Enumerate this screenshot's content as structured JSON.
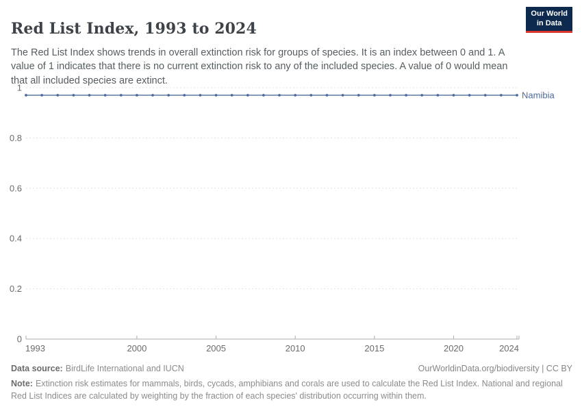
{
  "header": {
    "title": "Red List Index, 1993 to 2024",
    "subtitle": "The Red List Index shows trends in overall extinction risk for groups of species. It is an index between 0 and 1. A value of 1 indicates that there is no current extinction risk to any of the included species. A value of 0 would mean that all included species are extinct.",
    "logo": {
      "line1": "Our World",
      "line2": "in Data",
      "bg_color": "#0d2a4e",
      "accent_color": "#d7382d"
    }
  },
  "chart_data": {
    "type": "line",
    "title": "Red List Index, 1993 to 2024",
    "xlabel": "",
    "ylabel": "",
    "xlim": [
      1993,
      2024
    ],
    "ylim": [
      0,
      1
    ],
    "x_ticks": [
      1993,
      2000,
      2005,
      2010,
      2015,
      2020,
      2024
    ],
    "y_ticks": [
      0,
      0.2,
      0.4,
      0.6,
      0.8,
      1
    ],
    "grid": "horizontal-dashed",
    "legend_position": "end-of-line-label",
    "series": [
      {
        "name": "Namibia",
        "color": "#4C6A9C",
        "x": [
          1993,
          1994,
          1995,
          1996,
          1997,
          1998,
          1999,
          2000,
          2001,
          2002,
          2003,
          2004,
          2005,
          2006,
          2007,
          2008,
          2009,
          2010,
          2011,
          2012,
          2013,
          2014,
          2015,
          2016,
          2017,
          2018,
          2019,
          2020,
          2021,
          2022,
          2023,
          2024
        ],
        "values": [
          0.97,
          0.97,
          0.97,
          0.97,
          0.97,
          0.97,
          0.97,
          0.97,
          0.97,
          0.97,
          0.97,
          0.97,
          0.97,
          0.97,
          0.97,
          0.97,
          0.97,
          0.97,
          0.97,
          0.97,
          0.97,
          0.97,
          0.97,
          0.97,
          0.97,
          0.97,
          0.97,
          0.97,
          0.97,
          0.97,
          0.97,
          0.97
        ]
      }
    ]
  },
  "style": {
    "gridline_color": "#e0e0e0",
    "axis_color": "#ababab",
    "tick_label_color": "#6b6b6b"
  },
  "footer": {
    "data_source_label": "Data source:",
    "data_source": "BirdLife International and IUCN",
    "link": "OurWorldinData.org/biodiversity | CC BY",
    "note_label": "Note:",
    "note": "Extinction risk estimates for mammals, birds, cycads, amphibians and corals are used to calculate the Red List Index. National and regional Red List Indices are calculated by weighting by the fraction of each species' distribution occurring within them."
  }
}
